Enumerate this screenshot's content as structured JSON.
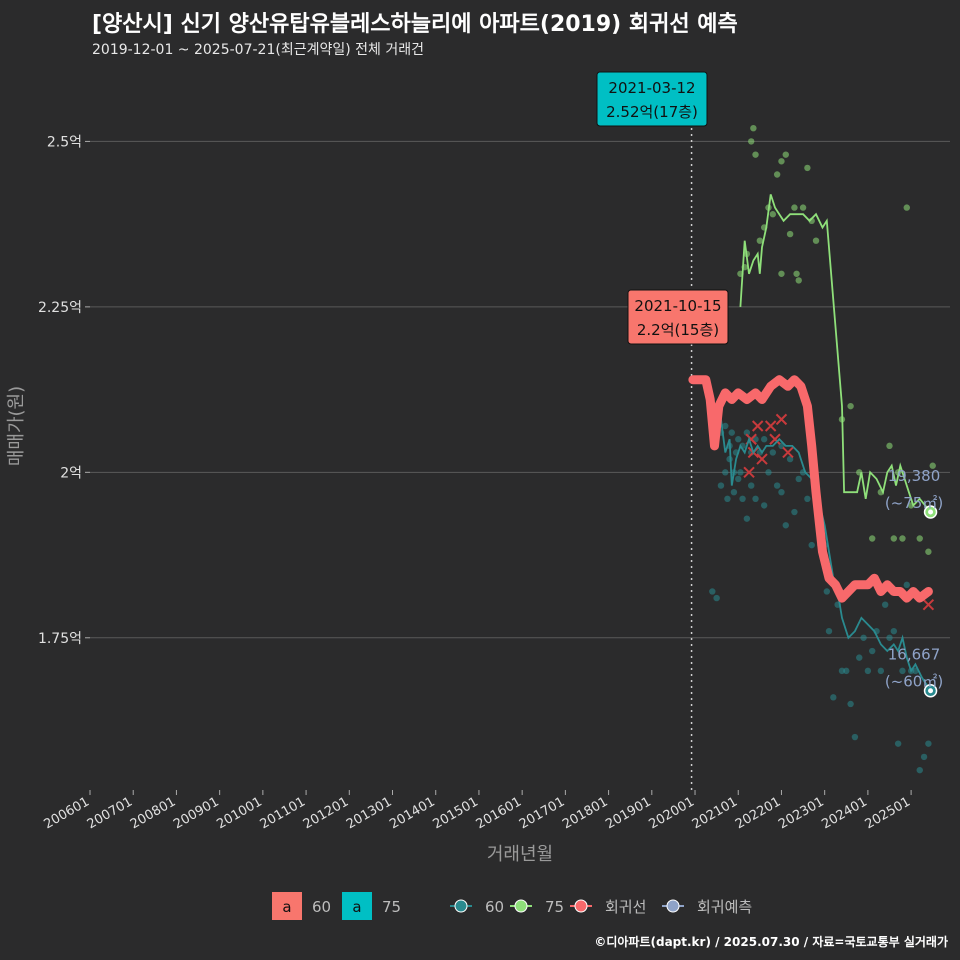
{
  "title": "[양산시] 신기 양산유탑유블레스하늘리에 아파트(2019) 회귀선 예측",
  "subtitle": "2019-12-01 ~ 2025-07-21(최근계약일) 전체 거래건",
  "credit": "©디아파트(dapt.kr) / 2025.07.30 / 자료=국토교통부 실거래가",
  "colors": {
    "background": "#2b2b2c",
    "grid": "#5a5a5a",
    "size60": "#2a8a8f",
    "size75": "#8fe07a",
    "regression": "#f8696b",
    "forecast": "#8fa3c8",
    "label60fill": "#f8766d",
    "label75fill": "#00bfc4"
  },
  "chart_data": {
    "type": "scatter",
    "title": "[양산시] 신기 양산유탑유블레스하늘리에 아파트(2019) 회귀선 예측",
    "xlabel": "거래년월",
    "ylabel": "매매가(원)",
    "xlim": [
      2006.0,
      2025.9
    ],
    "ylim": [
      1.52,
      2.62
    ],
    "x_ticks": [
      "200601",
      "200701",
      "200801",
      "200901",
      "201001",
      "201101",
      "201201",
      "201301",
      "201401",
      "201501",
      "201601",
      "201701",
      "201801",
      "201901",
      "202001",
      "202101",
      "202201",
      "202301",
      "202401",
      "202501"
    ],
    "y_ticks": [
      {
        "value": 1.75,
        "label": "1.75억"
      },
      {
        "value": 2.0,
        "label": "2억"
      },
      {
        "value": 2.25,
        "label": "2.25억"
      },
      {
        "value": 2.5,
        "label": "2.5억"
      }
    ],
    "vline": 2019.92,
    "scatter_series": [
      {
        "name": "60",
        "color": "#2a8a8f",
        "points": [
          [
            2020.4,
            1.82
          ],
          [
            2020.5,
            1.81
          ],
          [
            2020.6,
            1.98
          ],
          [
            2020.6,
            2.06
          ],
          [
            2020.7,
            2.0
          ],
          [
            2020.7,
            2.07
          ],
          [
            2020.75,
            1.96
          ],
          [
            2020.8,
            2.04
          ],
          [
            2020.8,
            2.02
          ],
          [
            2020.85,
            2.06
          ],
          [
            2020.9,
            2.0
          ],
          [
            2020.9,
            1.97
          ],
          [
            2020.95,
            2.03
          ],
          [
            2021.0,
            2.05
          ],
          [
            2021.0,
            1.99
          ],
          [
            2021.05,
            2.0
          ],
          [
            2021.1,
            2.04
          ],
          [
            2021.1,
            1.96
          ],
          [
            2021.2,
            2.06
          ],
          [
            2021.2,
            1.93
          ],
          [
            2021.3,
            2.03
          ],
          [
            2021.3,
            1.98
          ],
          [
            2021.4,
            2.05
          ],
          [
            2021.4,
            1.96
          ],
          [
            2021.5,
            2.03
          ],
          [
            2021.6,
            2.05
          ],
          [
            2021.6,
            1.95
          ],
          [
            2021.7,
            2.0
          ],
          [
            2021.8,
            2.03
          ],
          [
            2021.9,
            1.98
          ],
          [
            2022.0,
            2.04
          ],
          [
            2022.0,
            1.97
          ],
          [
            2022.1,
            1.92
          ],
          [
            2022.2,
            2.02
          ],
          [
            2022.3,
            1.94
          ],
          [
            2022.4,
            1.99
          ],
          [
            2022.5,
            2.0
          ],
          [
            2022.6,
            1.96
          ],
          [
            2022.7,
            1.89
          ],
          [
            2022.8,
            1.97
          ],
          [
            2022.9,
            1.89
          ],
          [
            2023.0,
            1.89
          ],
          [
            2023.05,
            1.82
          ],
          [
            2023.1,
            1.76
          ],
          [
            2023.2,
            1.66
          ],
          [
            2023.3,
            1.8
          ],
          [
            2023.4,
            1.7
          ],
          [
            2023.5,
            1.7
          ],
          [
            2023.6,
            1.65
          ],
          [
            2023.7,
            1.6
          ],
          [
            2023.8,
            1.72
          ],
          [
            2023.9,
            1.75
          ],
          [
            2024.0,
            1.7
          ],
          [
            2024.1,
            1.73
          ],
          [
            2024.2,
            1.76
          ],
          [
            2024.3,
            1.7
          ],
          [
            2024.4,
            1.8
          ],
          [
            2024.5,
            1.75
          ],
          [
            2024.6,
            1.76
          ],
          [
            2024.7,
            1.59
          ],
          [
            2024.8,
            1.7
          ],
          [
            2024.9,
            1.83
          ],
          [
            2025.0,
            1.7
          ],
          [
            2025.1,
            1.7
          ],
          [
            2025.2,
            1.55
          ],
          [
            2025.3,
            1.57
          ],
          [
            2025.4,
            1.59
          ]
        ]
      },
      {
        "name": "75",
        "color": "#8fe07a",
        "points": [
          [
            2021.05,
            2.3
          ],
          [
            2021.15,
            2.31
          ],
          [
            2021.2,
            2.33
          ],
          [
            2021.3,
            2.5
          ],
          [
            2021.35,
            2.52
          ],
          [
            2021.4,
            2.48
          ],
          [
            2021.5,
            2.35
          ],
          [
            2021.6,
            2.37
          ],
          [
            2021.7,
            2.4
          ],
          [
            2021.8,
            2.39
          ],
          [
            2021.9,
            2.45
          ],
          [
            2022.0,
            2.47
          ],
          [
            2022.0,
            2.3
          ],
          [
            2022.1,
            2.48
          ],
          [
            2022.2,
            2.36
          ],
          [
            2022.3,
            2.4
          ],
          [
            2022.35,
            2.3
          ],
          [
            2022.4,
            2.29
          ],
          [
            2022.5,
            2.4
          ],
          [
            2022.6,
            2.46
          ],
          [
            2022.7,
            2.38
          ],
          [
            2022.8,
            2.35
          ],
          [
            2023.4,
            2.08
          ],
          [
            2023.6,
            2.1
          ],
          [
            2023.8,
            2.0
          ],
          [
            2024.1,
            1.9
          ],
          [
            2024.3,
            1.97
          ],
          [
            2024.5,
            2.04
          ],
          [
            2024.6,
            1.9
          ],
          [
            2024.7,
            2.0
          ],
          [
            2024.8,
            1.9
          ],
          [
            2024.9,
            2.4
          ],
          [
            2025.0,
            1.95
          ],
          [
            2025.2,
            1.9
          ],
          [
            2025.4,
            1.88
          ],
          [
            2025.5,
            2.01
          ]
        ]
      }
    ],
    "line_series": [
      {
        "name": "60",
        "color": "#2a8a8f",
        "points": [
          [
            2020.6,
            2.08
          ],
          [
            2020.7,
            2.03
          ],
          [
            2020.8,
            2.05
          ],
          [
            2020.85,
            1.98
          ],
          [
            2020.95,
            2.02
          ],
          [
            2021.05,
            2.04
          ],
          [
            2021.15,
            2.03
          ],
          [
            2021.25,
            2.05
          ],
          [
            2021.35,
            2.03
          ],
          [
            2021.45,
            2.04
          ],
          [
            2021.55,
            2.03
          ],
          [
            2021.65,
            2.04
          ],
          [
            2021.8,
            2.04
          ],
          [
            2021.95,
            2.05
          ],
          [
            2022.1,
            2.04
          ],
          [
            2022.25,
            2.04
          ],
          [
            2022.4,
            2.03
          ],
          [
            2022.55,
            2.0
          ],
          [
            2022.7,
            1.99
          ],
          [
            2022.85,
            1.96
          ],
          [
            2023.0,
            1.92
          ],
          [
            2023.1,
            1.88
          ],
          [
            2023.2,
            1.84
          ],
          [
            2023.3,
            1.82
          ],
          [
            2023.4,
            1.78
          ],
          [
            2023.55,
            1.75
          ],
          [
            2023.7,
            1.76
          ],
          [
            2023.85,
            1.78
          ],
          [
            2024.0,
            1.77
          ],
          [
            2024.15,
            1.76
          ],
          [
            2024.3,
            1.74
          ],
          [
            2024.45,
            1.73
          ],
          [
            2024.6,
            1.74
          ],
          [
            2024.7,
            1.73
          ],
          [
            2024.8,
            1.75
          ],
          [
            2024.9,
            1.72
          ],
          [
            2025.0,
            1.7
          ],
          [
            2025.1,
            1.71
          ],
          [
            2025.25,
            1.69
          ],
          [
            2025.45,
            1.67
          ]
        ]
      },
      {
        "name": "75",
        "color": "#8fe07a",
        "points": [
          [
            2021.05,
            2.25
          ],
          [
            2021.15,
            2.35
          ],
          [
            2021.25,
            2.3
          ],
          [
            2021.35,
            2.32
          ],
          [
            2021.45,
            2.33
          ],
          [
            2021.5,
            2.3
          ],
          [
            2021.55,
            2.34
          ],
          [
            2021.65,
            2.37
          ],
          [
            2021.75,
            2.42
          ],
          [
            2021.85,
            2.4
          ],
          [
            2021.95,
            2.39
          ],
          [
            2022.05,
            2.38
          ],
          [
            2022.2,
            2.39
          ],
          [
            2022.35,
            2.39
          ],
          [
            2022.5,
            2.39
          ],
          [
            2022.65,
            2.38
          ],
          [
            2022.8,
            2.39
          ],
          [
            2022.95,
            2.37
          ],
          [
            2023.05,
            2.38
          ],
          [
            2023.4,
            2.1
          ],
          [
            2023.45,
            1.97
          ],
          [
            2023.6,
            1.97
          ],
          [
            2023.75,
            1.97
          ],
          [
            2023.85,
            2.0
          ],
          [
            2023.95,
            1.96
          ],
          [
            2024.05,
            2.0
          ],
          [
            2024.2,
            1.99
          ],
          [
            2024.35,
            1.97
          ],
          [
            2024.45,
            2.0
          ],
          [
            2024.55,
            2.01
          ],
          [
            2024.65,
            1.98
          ],
          [
            2024.75,
            2.01
          ],
          [
            2024.85,
            1.99
          ],
          [
            2024.95,
            1.97
          ],
          [
            2025.05,
            1.95
          ],
          [
            2025.2,
            1.96
          ],
          [
            2025.45,
            1.94
          ]
        ]
      }
    ],
    "regression": {
      "name": "회귀선",
      "color": "#f8696b",
      "points": [
        [
          2019.95,
          2.14
        ],
        [
          2020.1,
          2.14
        ],
        [
          2020.25,
          2.14
        ],
        [
          2020.35,
          2.11
        ],
        [
          2020.45,
          2.04
        ],
        [
          2020.55,
          2.1
        ],
        [
          2020.7,
          2.12
        ],
        [
          2020.85,
          2.11
        ],
        [
          2021.0,
          2.12
        ],
        [
          2021.2,
          2.11
        ],
        [
          2021.4,
          2.12
        ],
        [
          2021.55,
          2.11
        ],
        [
          2021.75,
          2.13
        ],
        [
          2021.95,
          2.14
        ],
        [
          2022.15,
          2.13
        ],
        [
          2022.3,
          2.14
        ],
        [
          2022.45,
          2.13
        ],
        [
          2022.6,
          2.1
        ],
        [
          2022.7,
          2.04
        ],
        [
          2022.8,
          1.97
        ],
        [
          2022.95,
          1.88
        ],
        [
          2023.1,
          1.84
        ],
        [
          2023.25,
          1.83
        ],
        [
          2023.4,
          1.81
        ],
        [
          2023.55,
          1.82
        ],
        [
          2023.7,
          1.83
        ],
        [
          2023.85,
          1.83
        ],
        [
          2024.0,
          1.83
        ],
        [
          2024.15,
          1.84
        ],
        [
          2024.3,
          1.82
        ],
        [
          2024.45,
          1.83
        ],
        [
          2024.6,
          1.82
        ],
        [
          2024.75,
          1.82
        ],
        [
          2024.9,
          1.81
        ],
        [
          2025.05,
          1.82
        ],
        [
          2025.2,
          1.81
        ],
        [
          2025.4,
          1.82
        ]
      ],
      "cross_marks": [
        [
          2021.3,
          2.05
        ],
        [
          2021.45,
          2.07
        ],
        [
          2021.35,
          2.03
        ],
        [
          2021.25,
          2.0
        ],
        [
          2021.55,
          2.02
        ],
        [
          2021.75,
          2.07
        ],
        [
          2021.85,
          2.05
        ],
        [
          2022.0,
          2.08
        ],
        [
          2022.15,
          2.03
        ],
        [
          2025.4,
          1.8
        ]
      ]
    },
    "forecast_labels": [
      {
        "value": "19,380",
        "size": "(~75㎡)",
        "x": 2025.45,
        "y": 1.94,
        "marker_color": "#8fe07a"
      },
      {
        "value": "16,667",
        "size": "(~60㎡)",
        "x": 2025.45,
        "y": 1.67,
        "marker_color": "#2a8a8f"
      }
    ],
    "callouts": [
      {
        "date": "2021-03-12",
        "price": "2.52억(17층)",
        "x": 2021.0,
        "y": 2.52,
        "fill": "#00bfc4"
      },
      {
        "date": "2021-10-15",
        "price": "2.2억(15층)",
        "x": 2021.0,
        "y": 2.2,
        "fill": "#f8766d"
      }
    ],
    "legend": {
      "label_items": [
        {
          "key": "a",
          "text": "60",
          "fill": "#f8766d"
        },
        {
          "key": "a",
          "text": "75",
          "fill": "#00bfc4"
        }
      ],
      "line_items": [
        {
          "text": "60",
          "color": "#2a8a8f"
        },
        {
          "text": "75",
          "color": "#8fe07a"
        },
        {
          "text": "회귀선",
          "color": "#f8696b"
        },
        {
          "text": "회귀예측",
          "color": "#8fa3c8"
        }
      ]
    }
  }
}
